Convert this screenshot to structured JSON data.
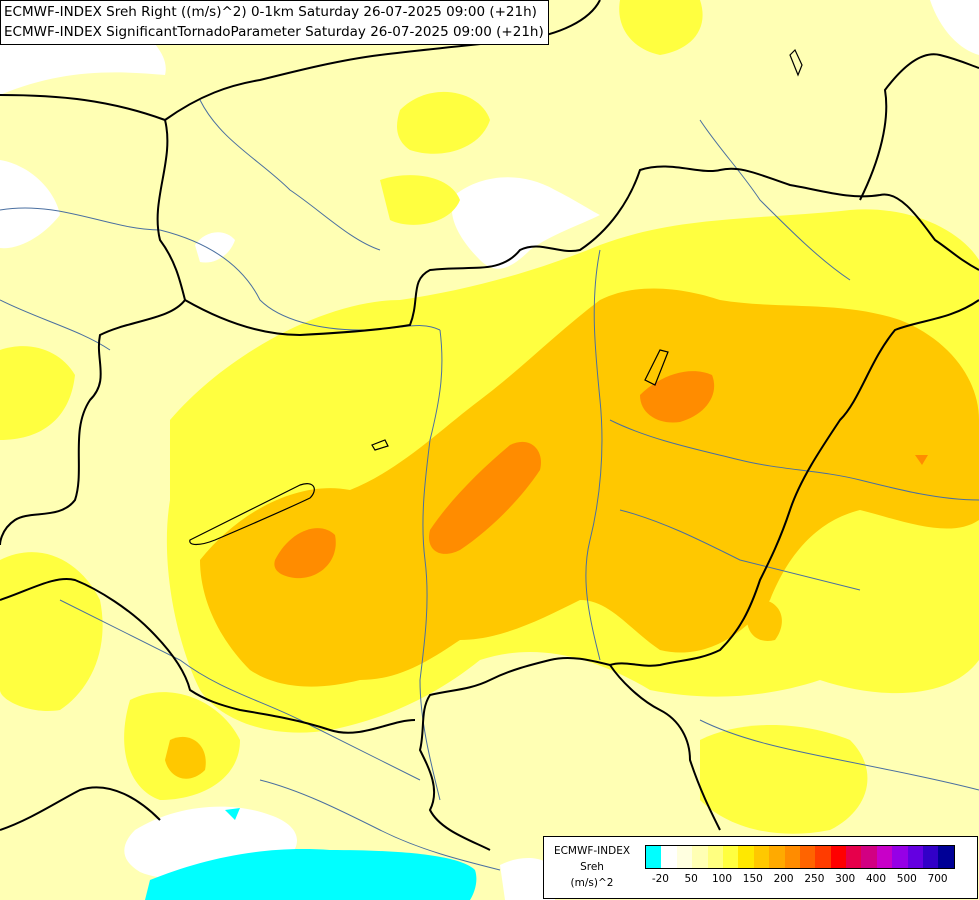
{
  "title_lines": [
    "ECMWF-INDEX Sreh Right ((m/s)^2) 0-1km Saturday 26-07-2025 09:00 (+21h)",
    "ECMWF-INDEX SignificantTornadoParameter Saturday 26-07-2025 09:00 (+21h)"
  ],
  "legend": {
    "source": "ECMWF-INDEX",
    "variable": "Sreh",
    "unit": "(m/s)^2",
    "colors": [
      "#00ffff",
      "#ffffff",
      "#ffffe0",
      "#ffffb4",
      "#ffff80",
      "#ffff40",
      "#ffe800",
      "#ffc800",
      "#ffaa00",
      "#ff8c00",
      "#ff6400",
      "#ff3c00",
      "#ff0000",
      "#e6004b",
      "#d20082",
      "#c800c8",
      "#9600e6",
      "#6400e1",
      "#3200c8",
      "#000096"
    ],
    "tick_labels": [
      "-20",
      "50",
      "100",
      "150",
      "200",
      "250",
      "300",
      "400",
      "500",
      "700"
    ]
  },
  "colors": {
    "field_light": "#ffffb4",
    "field_yellow": "#ffff40",
    "field_gold": "#ffc800",
    "field_orange": "#ff8c00",
    "field_white": "#ffffff",
    "field_cyan": "#00ffff",
    "borders": "#000000",
    "rivers": "#4a6fa0"
  }
}
